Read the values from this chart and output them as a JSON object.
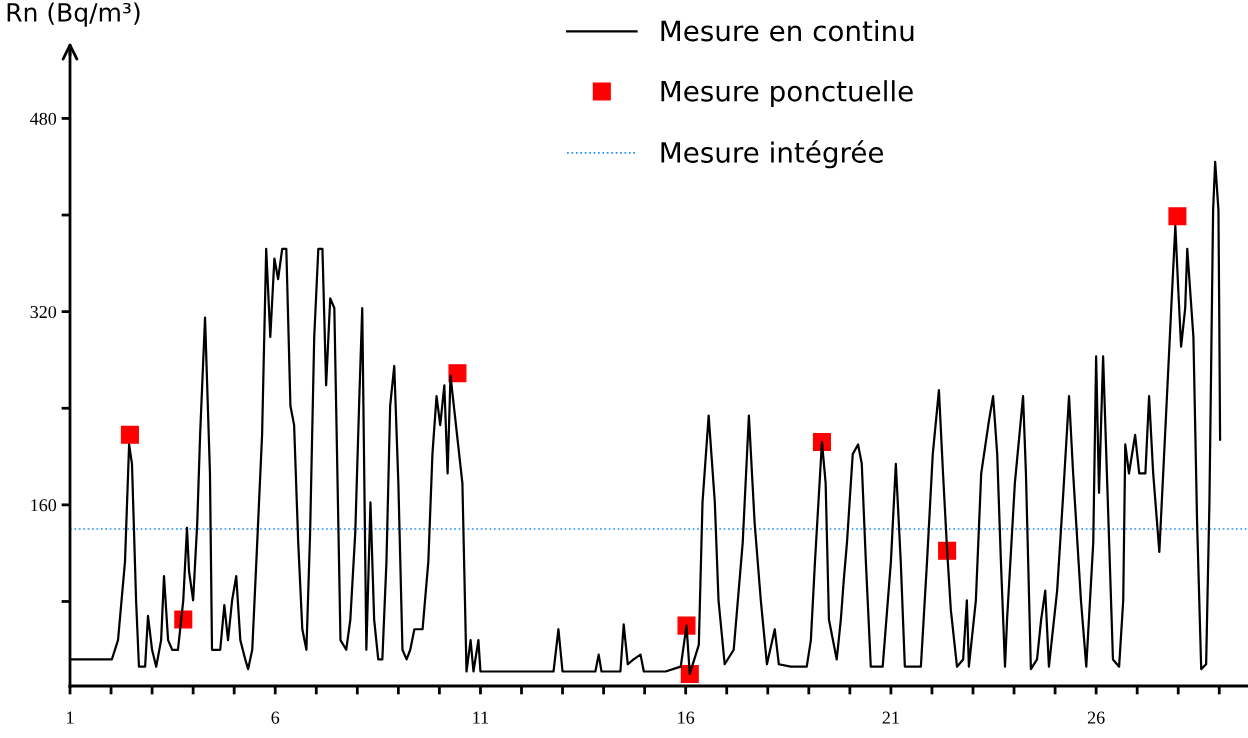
{
  "chart_data": {
    "type": "line",
    "ylabel": "Rn (Bq/m³)",
    "xlim": [
      1,
      29.7
    ],
    "ylim": [
      10,
      535
    ],
    "xticks": [
      1,
      {
        "value": 2,
        "label": null
      },
      {
        "value": 3,
        "label": null
      },
      {
        "value": 4,
        "label": null
      },
      {
        "value": 5,
        "label": null
      },
      6,
      {
        "value": 7,
        "label": null
      },
      {
        "value": 8,
        "label": null
      },
      {
        "value": 9,
        "label": null
      },
      {
        "value": 10,
        "label": null
      },
      11,
      {
        "value": 12,
        "label": null
      },
      {
        "value": 13,
        "label": null
      },
      {
        "value": 14,
        "label": null
      },
      {
        "value": 15,
        "label": null
      },
      16,
      {
        "value": 17,
        "label": null
      },
      {
        "value": 18,
        "label": null
      },
      {
        "value": 19,
        "label": null
      },
      {
        "value": 20,
        "label": null
      },
      21,
      {
        "value": 22,
        "label": null
      },
      {
        "value": 23,
        "label": null
      },
      {
        "value": 24,
        "label": null
      },
      {
        "value": 25,
        "label": null
      },
      26,
      {
        "value": 27,
        "label": null
      },
      {
        "value": 28,
        "label": null
      },
      {
        "value": 29,
        "label": null
      }
    ],
    "yticks": [
      {
        "value": 80,
        "label": null
      },
      160,
      {
        "value": 240,
        "label": null
      },
      320,
      {
        "value": 400,
        "label": null
      },
      480
    ],
    "grid": false,
    "legend": "top",
    "ref_lines": [
      {
        "axis": "y",
        "value": 140,
        "label": "Mesure intégrée",
        "color": "#1e90ff",
        "line_style": "dotted"
      }
    ],
    "series": [
      {
        "name": "Mesure en continu",
        "color": "#000000",
        "marker": "none",
        "line_style": "solid",
        "x": [
          1.0,
          2.02,
          2.17,
          2.34,
          2.44,
          2.51,
          2.61,
          2.68,
          2.83,
          2.9,
          3.0,
          3.1,
          3.22,
          3.29,
          3.39,
          3.49,
          3.63,
          3.76,
          3.85,
          3.9,
          4.0,
          4.1,
          4.17,
          4.29,
          4.41,
          4.46,
          4.66,
          4.76,
          4.85,
          4.95,
          5.05,
          5.15,
          5.27,
          5.34,
          5.44,
          5.54,
          5.68,
          5.78,
          5.88,
          5.98,
          6.07,
          6.17,
          6.27,
          6.37,
          6.46,
          6.56,
          6.66,
          6.76,
          6.85,
          6.95,
          7.05,
          7.15,
          7.24,
          7.34,
          7.44,
          7.59,
          7.73,
          7.83,
          7.95,
          8.05,
          8.12,
          8.22,
          8.32,
          8.41,
          8.51,
          8.61,
          8.71,
          8.8,
          8.9,
          9.0,
          9.1,
          9.2,
          9.29,
          9.39,
          9.59,
          9.73,
          9.83,
          9.93,
          10.02,
          10.12,
          10.2,
          10.27,
          10.56,
          10.66,
          10.76,
          10.83,
          10.95,
          11.0,
          12.78,
          12.9,
          13.0,
          13.8,
          13.88,
          13.95,
          14.41,
          14.49,
          14.59,
          14.73,
          14.9,
          14.98,
          15.51,
          15.88,
          16.02,
          16.1,
          16.32,
          16.41,
          16.56,
          16.71,
          16.8,
          16.95,
          17.17,
          17.39,
          17.54,
          17.68,
          17.83,
          17.98,
          18.17,
          18.27,
          18.56,
          18.95,
          19.05,
          19.15,
          19.32,
          19.41,
          19.49,
          19.68,
          19.78,
          19.85,
          19.93,
          20.07,
          20.2,
          20.29,
          20.39,
          20.51,
          20.8,
          21.0,
          21.12,
          21.24,
          21.34,
          21.73,
          21.88,
          22.02,
          22.17,
          22.27,
          22.37,
          22.46,
          22.61,
          22.76,
          22.85,
          22.9,
          23.07,
          23.2,
          23.39,
          23.49,
          23.59,
          23.68,
          23.78,
          23.83,
          24.02,
          24.22,
          24.29,
          24.41,
          24.56,
          24.66,
          24.76,
          24.85,
          25.05,
          25.2,
          25.34,
          25.44,
          25.63,
          25.76,
          25.93,
          26.0,
          26.07,
          26.17,
          26.27,
          26.41,
          26.56,
          26.66,
          26.71,
          26.8,
          26.95,
          27.05,
          27.2,
          27.29,
          27.39,
          27.54,
          27.68,
          27.83,
          27.93,
          28.0,
          28.07,
          28.17,
          28.22,
          28.37,
          28.46,
          28.56,
          28.68,
          28.76,
          28.85,
          28.9,
          28.98,
          29.0,
          29.02
        ],
        "values": [
          32,
          32,
          48,
          113,
          210,
          194,
          81,
          26,
          26,
          68,
          40,
          26,
          48,
          101,
          48,
          40,
          40,
          81,
          141,
          105,
          81,
          145,
          218,
          315,
          186,
          40,
          40,
          77,
          48,
          81,
          101,
          48,
          32,
          24,
          40,
          113,
          218,
          372,
          299,
          364,
          347,
          372,
          372,
          242,
          226,
          129,
          57,
          40,
          137,
          299,
          372,
          372,
          259,
          331,
          323,
          48,
          40,
          65,
          137,
          250,
          323,
          40,
          162,
          65,
          32,
          32,
          113,
          242,
          275,
          178,
          40,
          32,
          40,
          57,
          57,
          113,
          202,
          250,
          226,
          259,
          186,
          267,
          178,
          22,
          48,
          22,
          48,
          22,
          22,
          57,
          22,
          22,
          36,
          22,
          22,
          61,
          28,
          32,
          36,
          22,
          22,
          26,
          60,
          20,
          44,
          162,
          234,
          162,
          81,
          28,
          40,
          129,
          234,
          145,
          81,
          28,
          57,
          28,
          26,
          26,
          48,
          113,
          212,
          178,
          65,
          32,
          65,
          97,
          129,
          202,
          210,
          194,
          113,
          26,
          26,
          113,
          194,
          113,
          26,
          26,
          113,
          202,
          255,
          186,
          122,
          73,
          26,
          32,
          81,
          26,
          81,
          186,
          230,
          250,
          202,
          113,
          26,
          65,
          178,
          250,
          186,
          24,
          32,
          65,
          89,
          26,
          89,
          170,
          250,
          186,
          81,
          26,
          129,
          283,
          170,
          283,
          178,
          32,
          26,
          81,
          210,
          186,
          218,
          186,
          186,
          250,
          186,
          121,
          218,
          323,
          391,
          339,
          291,
          323,
          372,
          299,
          145,
          24,
          28,
          162,
          404,
          444,
          404,
          315,
          214
        ]
      },
      {
        "name": "Mesure ponctuelle",
        "type": "scatter",
        "color": "#ff0000",
        "marker": "square",
        "x": [
          2.46,
          3.76,
          10.44,
          16.02,
          16.1,
          19.32,
          22.37,
          27.98
        ],
        "values": [
          218,
          65,
          269,
          60,
          20,
          212,
          122,
          399
        ]
      }
    ]
  }
}
